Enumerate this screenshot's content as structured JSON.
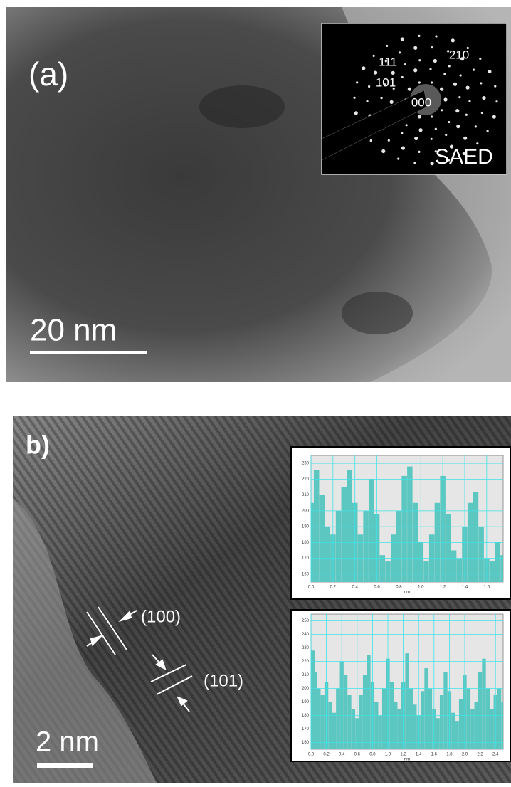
{
  "panel_a": {
    "label": "(a)",
    "scale_bar": "20 nm",
    "saed": {
      "title": "SAED",
      "spots": [
        "111",
        "210",
        "101",
        "000"
      ]
    }
  },
  "panel_b": {
    "label": "b)",
    "scale_bar": "2 nm",
    "planes": [
      "(100)",
      "(101)"
    ]
  },
  "chart_data": [
    {
      "type": "bar",
      "xlabel": "nm",
      "color": "#5cc6c0",
      "grid": true,
      "x": [
        0,
        0.05,
        0.1,
        0.15,
        0.2,
        0.25,
        0.3,
        0.35,
        0.4,
        0.45,
        0.5,
        0.55,
        0.6,
        0.65,
        0.7,
        0.75,
        0.8,
        0.85,
        0.9,
        0.95,
        1.0,
        1.05,
        1.1,
        1.15,
        1.2,
        1.25,
        1.3,
        1.35,
        1.4,
        1.45,
        1.5,
        1.55,
        1.6,
        1.65,
        1.7,
        1.75
      ],
      "values": [
        205,
        226,
        210,
        190,
        185,
        200,
        215,
        226,
        205,
        185,
        200,
        220,
        198,
        172,
        168,
        185,
        200,
        222,
        228,
        205,
        180,
        168,
        185,
        205,
        222,
        198,
        175,
        170,
        190,
        205,
        212,
        190,
        170,
        168,
        180,
        172
      ],
      "xlim": [
        0,
        1.75
      ],
      "ylim": [
        155,
        235
      ],
      "xticks": [
        {
          "value": 0,
          "label": "0.0"
        },
        0.2,
        0.4,
        0.6,
        0.8,
        {
          "value": 1,
          "label": "1.0"
        },
        1.2,
        1.4,
        1.6
      ],
      "yticks": [
        160,
        170,
        180,
        190,
        200,
        210,
        220,
        230
      ]
    },
    {
      "type": "bar",
      "xlabel": "nm",
      "color": "#5cc6c0",
      "grid": true,
      "x": [
        0,
        0.05,
        0.1,
        0.15,
        0.2,
        0.25,
        0.3,
        0.35,
        0.4,
        0.45,
        0.5,
        0.55,
        0.6,
        0.65,
        0.7,
        0.75,
        0.8,
        0.85,
        0.9,
        0.95,
        1.0,
        1.05,
        1.1,
        1.15,
        1.2,
        1.25,
        1.3,
        1.35,
        1.4,
        1.45,
        1.5,
        1.55,
        1.6,
        1.65,
        1.7,
        1.75,
        1.8,
        1.85,
        1.9,
        1.95,
        2.0,
        2.05,
        2.1,
        2.15,
        2.2,
        2.25,
        2.3,
        2.35,
        2.4,
        2.45,
        2.5
      ],
      "values": [
        228,
        212,
        200,
        195,
        205,
        190,
        182,
        200,
        220,
        210,
        195,
        185,
        178,
        195,
        210,
        225,
        205,
        190,
        180,
        200,
        222,
        205,
        190,
        185,
        205,
        226,
        200,
        188,
        180,
        198,
        215,
        200,
        185,
        178,
        195,
        212,
        198,
        182,
        176,
        192,
        210,
        200,
        185,
        190,
        212,
        222,
        200,
        185,
        195,
        200,
        190
      ],
      "xlim": [
        0,
        2.5
      ],
      "ylim": [
        155,
        255
      ],
      "xticks": [
        {
          "value": 0,
          "label": "0.0"
        },
        0.2,
        0.4,
        0.6,
        0.8,
        {
          "value": 1,
          "label": "1.0"
        },
        1.2,
        1.4,
        1.6,
        1.8,
        {
          "value": 2,
          "label": "2.0"
        },
        2.2,
        2.4
      ],
      "yticks": [
        160,
        170,
        180,
        190,
        200,
        210,
        220,
        230,
        240,
        250
      ]
    }
  ]
}
